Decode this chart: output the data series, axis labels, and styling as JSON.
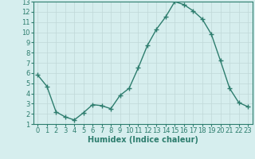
{
  "x": [
    0,
    1,
    2,
    3,
    4,
    5,
    6,
    7,
    8,
    9,
    10,
    11,
    12,
    13,
    14,
    15,
    16,
    17,
    18,
    19,
    20,
    21,
    22,
    23
  ],
  "y": [
    5.8,
    4.7,
    2.2,
    1.7,
    1.4,
    2.1,
    2.9,
    2.8,
    2.5,
    3.8,
    4.5,
    6.5,
    8.7,
    10.3,
    11.5,
    13.0,
    12.7,
    12.1,
    11.3,
    9.8,
    7.2,
    4.5,
    3.1,
    2.7
  ],
  "line_color": "#2d7d6e",
  "marker": "+",
  "marker_size": 4,
  "bg_color": "#d6eeee",
  "grid_color": "#c0d8d8",
  "xlabel": "Humidex (Indice chaleur)",
  "xlim": [
    -0.5,
    23.5
  ],
  "ylim": [
    1,
    13
  ],
  "yticks": [
    1,
    2,
    3,
    4,
    5,
    6,
    7,
    8,
    9,
    10,
    11,
    12,
    13
  ],
  "xticks": [
    0,
    1,
    2,
    3,
    4,
    5,
    6,
    7,
    8,
    9,
    10,
    11,
    12,
    13,
    14,
    15,
    16,
    17,
    18,
    19,
    20,
    21,
    22,
    23
  ],
  "tick_label_fontsize": 6,
  "xlabel_fontsize": 7,
  "tick_color": "#2d7d6e",
  "axis_color": "#2d7d6e",
  "linewidth": 1.0
}
